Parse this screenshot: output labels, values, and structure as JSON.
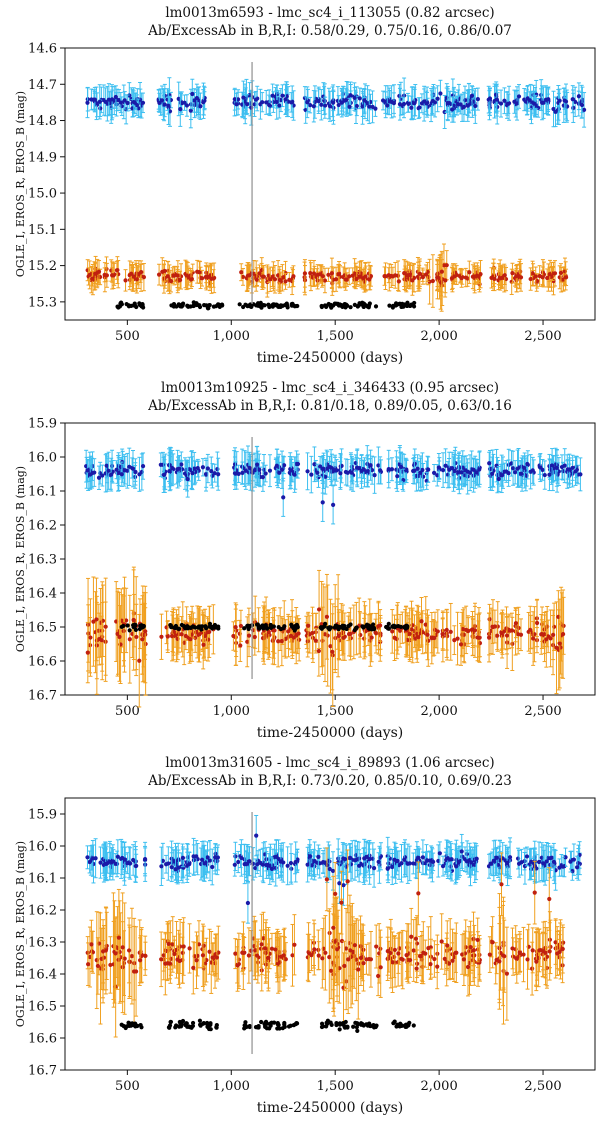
{
  "chart_data": [
    {
      "type": "scatter",
      "title": "lm0013m6593 - lmc_sc4_i_113055 (0.82 arcsec)",
      "subtitle": "Ab/ExcessAb in B,R,I: 0.58/0.29, 0.75/0.16, 0.86/0.07",
      "xlabel": "time-2450000 (days)",
      "ylabel": "OGLE_I, EROS_R, EROS_B (mag)",
      "xlim": [
        200,
        2750
      ],
      "ylim": [
        15.35,
        14.6
      ],
      "y_inverted": true,
      "xticks": [
        500,
        1000,
        1500,
        2000,
        2500
      ],
      "xtick_labels": [
        "500",
        "1,000",
        "1,500",
        "2,000",
        "2,500"
      ],
      "yticks": [
        14.6,
        14.7,
        14.8,
        14.9,
        15.0,
        15.1,
        15.2,
        15.3
      ],
      "ytick_labels": [
        "14.6",
        "14.7",
        "14.8",
        "14.9",
        "15.0",
        "15.1",
        "15.2",
        "15.3"
      ],
      "vline_x": 1100,
      "series": [
        {
          "name": "EROS_B",
          "color": "#1a1aa8",
          "errcolor": "#3dbff0",
          "mean": 14.75,
          "amp": 0.02,
          "err": 0.035,
          "segments": [
            [
              300,
              580
            ],
            [
              650,
              880
            ],
            [
              1010,
              1300
            ],
            [
              1350,
              1700
            ],
            [
              1730,
              2200
            ],
            [
              2230,
              2700
            ]
          ],
          "scatter": [],
          "wide": []
        },
        {
          "name": "EROS_R",
          "color": "#c0200f",
          "errcolor": "#f0a020",
          "mean": 15.23,
          "amp": 0.015,
          "err": 0.03,
          "segments": [
            [
              300,
              580
            ],
            [
              650,
              930
            ],
            [
              1040,
              1300
            ],
            [
              1350,
              1680
            ],
            [
              1720,
              2200
            ],
            [
              2250,
              2620
            ]
          ],
          "scatter": [],
          "wide": [
            [
              1950,
              2050
            ]
          ]
        },
        {
          "name": "OGLE_I",
          "color": "#000000",
          "errcolor": "#555555",
          "mean": 15.31,
          "amp": 0.007,
          "err": 0.008,
          "segments": [
            [
              450,
              580
            ],
            [
              700,
              960
            ],
            [
              1040,
              1320
            ],
            [
              1430,
              1700
            ],
            [
              1760,
              1890
            ]
          ],
          "scatter": [],
          "wide": []
        }
      ]
    },
    {
      "type": "scatter",
      "title": "lm0013m10925 - lmc_sc4_i_346433 (0.95 arcsec)",
      "subtitle": "Ab/ExcessAb in B,R,I: 0.81/0.18, 0.89/0.05, 0.63/0.16",
      "xlabel": "time-2450000 (days)",
      "ylabel": "OGLE_I, EROS_R, EROS_B (mag)",
      "xlim": [
        200,
        2750
      ],
      "ylim": [
        16.7,
        15.9
      ],
      "y_inverted": true,
      "xticks": [
        500,
        1000,
        1500,
        2000,
        2500
      ],
      "xtick_labels": [
        "500",
        "1,000",
        "1,500",
        "2,000",
        "2,500"
      ],
      "yticks": [
        15.9,
        16.0,
        16.1,
        16.2,
        16.3,
        16.4,
        16.5,
        16.6,
        16.7
      ],
      "ytick_labels": [
        "15.9",
        "16.0",
        "16.1",
        "16.2",
        "16.3",
        "16.4",
        "16.5",
        "16.6",
        "16.7"
      ],
      "vline_x": 1100,
      "series": [
        {
          "name": "EROS_B",
          "color": "#1a1aa8",
          "errcolor": "#3dbff0",
          "mean": 16.04,
          "amp": 0.02,
          "err": 0.04,
          "segments": [
            [
              300,
              580
            ],
            [
              660,
              940
            ],
            [
              1010,
              1330
            ],
            [
              1360,
              1720
            ],
            [
              1750,
              2200
            ],
            [
              2240,
              2680
            ]
          ],
          "scatter": [
            1250,
            1440,
            1490
          ],
          "wide": []
        },
        {
          "name": "EROS_R",
          "color": "#c0200f",
          "errcolor": "#f0a020",
          "mean": 16.52,
          "amp": 0.03,
          "err": 0.06,
          "segments": [
            [
              300,
              590
            ],
            [
              660,
              940
            ],
            [
              1010,
              1330
            ],
            [
              1360,
              1720
            ],
            [
              1750,
              2200
            ],
            [
              2240,
              2600
            ]
          ],
          "scatter": [],
          "wide": [
            [
              300,
              590
            ],
            [
              1410,
              1520
            ],
            [
              2540,
              2600
            ]
          ]
        },
        {
          "name": "OGLE_I",
          "color": "#000000",
          "errcolor": "#555555",
          "mean": 16.5,
          "amp": 0.008,
          "err": 0.01,
          "segments": [
            [
              470,
              580
            ],
            [
              700,
              940
            ],
            [
              1060,
              1330
            ],
            [
              1430,
              1700
            ],
            [
              1740,
              1850
            ]
          ],
          "scatter": [],
          "wide": []
        }
      ]
    },
    {
      "type": "scatter",
      "title": "lm0013m31605 - lmc_sc4_i_89893 (1.06 arcsec)",
      "subtitle": "Ab/ExcessAb in B,R,I: 0.73/0.20, 0.85/0.10, 0.69/0.23",
      "xlabel": "time-2450000 (days)",
      "ylabel": "OGLE_I, EROS_R, EROS_B (mag)",
      "xlim": [
        200,
        2750
      ],
      "ylim": [
        16.7,
        15.85
      ],
      "y_inverted": true,
      "xticks": [
        500,
        1000,
        1500,
        2000,
        2500
      ],
      "xtick_labels": [
        "500",
        "1,000",
        "1,500",
        "2,000",
        "2,500"
      ],
      "yticks": [
        15.9,
        16.0,
        16.1,
        16.2,
        16.3,
        16.4,
        16.5,
        16.6,
        16.7
      ],
      "ytick_labels": [
        "15.9",
        "16.0",
        "16.1",
        "16.2",
        "16.3",
        "16.4",
        "16.5",
        "16.6",
        "16.7"
      ],
      "vline_x": 1100,
      "series": [
        {
          "name": "EROS_B",
          "color": "#1a1aa8",
          "errcolor": "#3dbff0",
          "mean": 16.05,
          "amp": 0.02,
          "err": 0.045,
          "segments": [
            [
              300,
              590
            ],
            [
              660,
              940
            ],
            [
              1010,
              1320
            ],
            [
              1360,
              1720
            ],
            [
              1750,
              2200
            ],
            [
              2240,
              2680
            ]
          ],
          "scatter": [
            1080,
            1120,
            1520,
            1540
          ],
          "wide": []
        },
        {
          "name": "EROS_R",
          "color": "#c0200f",
          "errcolor": "#f0a020",
          "mean": 16.34,
          "amp": 0.04,
          "err": 0.07,
          "segments": [
            [
              300,
              590
            ],
            [
              660,
              940
            ],
            [
              1010,
              1320
            ],
            [
              1360,
              1720
            ],
            [
              1750,
              2200
            ],
            [
              2240,
              2600
            ]
          ],
          "scatter": [
            1460,
            1500,
            1530,
            1560,
            1900,
            2300,
            2460,
            2530
          ],
          "wide": [
            [
              350,
              560
            ],
            [
              1450,
              1620
            ],
            [
              2280,
              2340
            ]
          ]
        },
        {
          "name": "OGLE_I",
          "color": "#000000",
          "errcolor": "#555555",
          "mean": 16.56,
          "amp": 0.012,
          "err": 0.012,
          "segments": [
            [
              470,
              580
            ],
            [
              700,
              940
            ],
            [
              1060,
              1320
            ],
            [
              1430,
              1700
            ],
            [
              1770,
              1880
            ]
          ],
          "scatter": [],
          "wide": []
        }
      ]
    }
  ]
}
